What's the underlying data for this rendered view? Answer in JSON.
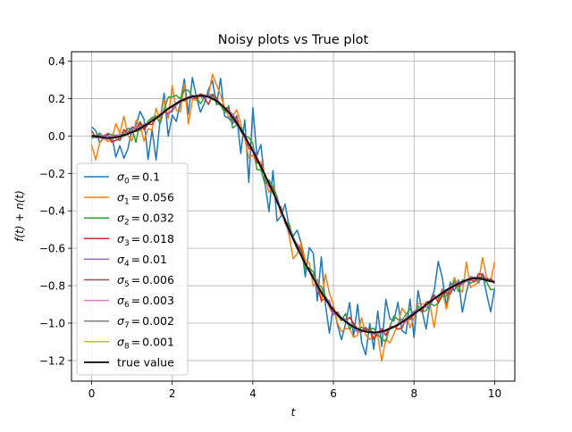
{
  "chart_data": {
    "type": "line",
    "title": "Noisy plots vs True plot",
    "xlabel": "t",
    "ylabel": "f(t) + n(t)",
    "xlim": [
      -0.5,
      10.5
    ],
    "ylim": [
      -1.31,
      0.45
    ],
    "grid": true,
    "legend_position": "lower-left",
    "x_ticks": [
      0,
      2,
      4,
      6,
      8,
      10
    ],
    "x_tick_labels": [
      "0",
      "2",
      "4",
      "6",
      "8",
      "10"
    ],
    "y_ticks": [
      0.4,
      0.2,
      0.0,
      -0.2,
      -0.4,
      -0.6,
      -0.8,
      -1.0,
      -1.2
    ],
    "y_tick_labels": [
      "0.4",
      "0.2",
      "0.0",
      "−0.2",
      "−0.4",
      "−0.6",
      "−0.8",
      "−1.0",
      "−1.2"
    ],
    "x": [
      0,
      0.5,
      1,
      1.5,
      2,
      2.5,
      3,
      3.5,
      4,
      4.5,
      5,
      5.5,
      6,
      6.5,
      7,
      7.5,
      8,
      8.5,
      9,
      9.5,
      10
    ],
    "series": [
      {
        "name": "σ₀ = 0.1",
        "sigma_symbol": "σ",
        "sigma_index": "0",
        "sigma_value": "0.1",
        "color": "#1f77b4",
        "noise": 0.1
      },
      {
        "name": "σ₁ = 0.056",
        "sigma_symbol": "σ",
        "sigma_index": "1",
        "sigma_value": "0.056",
        "color": "#ff7f0e",
        "noise": 0.056
      },
      {
        "name": "σ₂ = 0.032",
        "sigma_symbol": "σ",
        "sigma_index": "2",
        "sigma_value": "0.032",
        "color": "#2ca02c",
        "noise": 0.032
      },
      {
        "name": "σ₃ = 0.018",
        "sigma_symbol": "σ",
        "sigma_index": "3",
        "sigma_value": "0.018",
        "color": "#d62728",
        "noise": 0.018
      },
      {
        "name": "σ₄ = 0.01",
        "sigma_symbol": "σ",
        "sigma_index": "4",
        "sigma_value": "0.01",
        "color": "#9467bd",
        "noise": 0.01
      },
      {
        "name": "σ₅ = 0.006",
        "sigma_symbol": "σ",
        "sigma_index": "5",
        "sigma_value": "0.006",
        "color": "#8c564b",
        "noise": 0.006
      },
      {
        "name": "σ₆ = 0.003",
        "sigma_symbol": "σ",
        "sigma_index": "6",
        "sigma_value": "0.003",
        "color": "#e377c2",
        "noise": 0.003
      },
      {
        "name": "σ₇ = 0.002",
        "sigma_symbol": "σ",
        "sigma_index": "7",
        "sigma_value": "0.002",
        "color": "#7f7f7f",
        "noise": 0.002
      },
      {
        "name": "σ₈ = 0.001",
        "sigma_symbol": "σ",
        "sigma_index": "8",
        "sigma_value": "0.001",
        "color": "#bcbd22",
        "noise": 0.001
      },
      {
        "name": "true value",
        "color": "#000000",
        "is_true": true,
        "values": [
          0.0,
          -0.01,
          0.02,
          0.08,
          0.16,
          0.21,
          0.2,
          0.1,
          -0.08,
          -0.3,
          -0.55,
          -0.76,
          -0.93,
          -1.02,
          -1.05,
          -1.02,
          -0.95,
          -0.87,
          -0.8,
          -0.76,
          -0.78
        ]
      }
    ]
  }
}
